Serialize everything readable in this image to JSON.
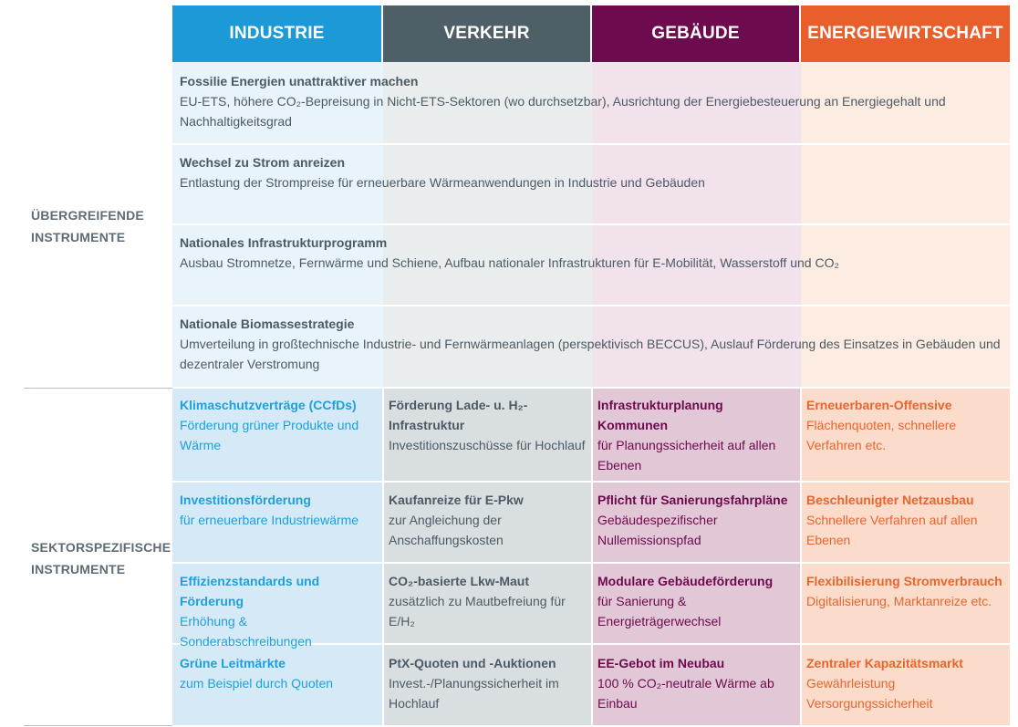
{
  "headers": [
    {
      "label": "INDUSTRIE",
      "color": "#1b9ad7"
    },
    {
      "label": "VERKEHR",
      "color": "#4f5f67"
    },
    {
      "label": "GEBÄUDE",
      "color": "#6e0b4f"
    },
    {
      "label": "ENERGIEWIRTSCHAFT",
      "color": "#e85f2c"
    }
  ],
  "groups": {
    "crosscutting": "ÜBERGREIFENDE\nINSTRUMENTE",
    "sectoral": "SEKTORSPEZIFISCHE\nINSTRUMENTE"
  },
  "crosscutting_rows": [
    {
      "title": "Fossilie Energien unattraktiver machen",
      "desc": "EU-ETS, höhere CO₂-Bepreisung in Nicht-ETS-Sektoren (wo durchsetzbar), Ausrichtung der Energiebesteuerung an Energiegehalt und Nachhaltigkeitsgrad"
    },
    {
      "title": "Wechsel zu Strom anreizen",
      "desc": "Entlastung der Strompreise für erneuerbare Wärmeanwendungen in Industrie und Gebäuden"
    },
    {
      "title": "Nationales Infrastrukturprogramm",
      "desc": "Ausbau Stromnetze, Fernwärme und Schiene, Aufbau nationaler Infrastrukturen für E-Mobilität, Wasserstoff und CO₂"
    },
    {
      "title": "Nationale Biomassestrategie",
      "desc": "Umverteilung in großtechnische Industrie- und Fernwärmeanlagen (perspektivisch BECCUS), Auslauf Förderung des Einsatzes in Gebäuden und dezentraler Verstromung"
    }
  ],
  "sector_rows": [
    [
      {
        "title": "Klimaschutzverträge (CCfDs)",
        "desc": "Förderung grüner Produkte und Wärme"
      },
      {
        "title": "Förderung Lade- u. H₂-Infrastruktur",
        "desc": "Investitionszuschüsse für Hochlauf"
      },
      {
        "title": "Infrastrukturplanung Kommunen",
        "desc": "für Planungssicherheit auf allen Ebenen"
      },
      {
        "title": "Erneuerbaren-Offensive",
        "desc": "Flächenquoten, schnellere Verfahren etc."
      }
    ],
    [
      {
        "title": "Investitionsförderung",
        "desc": "für erneuerbare Industriewärme"
      },
      {
        "title": "Kaufanreize für E-Pkw",
        "desc": "zur Angleichung der Anschaffungskosten"
      },
      {
        "title": "Pflicht für Sanierungsfahrpläne",
        "desc": "Gebäudespezifischer Nullemissionspfad"
      },
      {
        "title": "Beschleunigter Netzausbau",
        "desc": "Schnellere Verfahren auf allen Ebenen"
      }
    ],
    [
      {
        "title": "Effizienzstandards und Förderung",
        "desc": "Erhöhung & Sonderabschreibungen"
      },
      {
        "title": "CO₂-basierte Lkw-Maut",
        "desc": "zusätzlich zu Mautbefreiung für E/H₂"
      },
      {
        "title": "Modulare Gebäudeförderung",
        "desc": "für Sanierung & Energieträgerwechsel"
      },
      {
        "title": "Flexibilisierung Stromverbrauch",
        "desc": "Digitalisierung, Marktanreize etc."
      }
    ],
    [
      {
        "title": "Grüne Leitmärkte",
        "desc": "zum Beispiel durch Quoten"
      },
      {
        "title": "PtX-Quoten und -Auktionen",
        "desc": "Invest.-/Planungssicherheit im Hochlauf"
      },
      {
        "title": "EE-Gebot im Neubau",
        "desc": "100 % CO₂-neutrale Wärme ab Einbau"
      },
      {
        "title": "Zentraler Kapazitätsmarkt",
        "desc": "Gewährleistung Versorgungssicherheit"
      }
    ]
  ]
}
